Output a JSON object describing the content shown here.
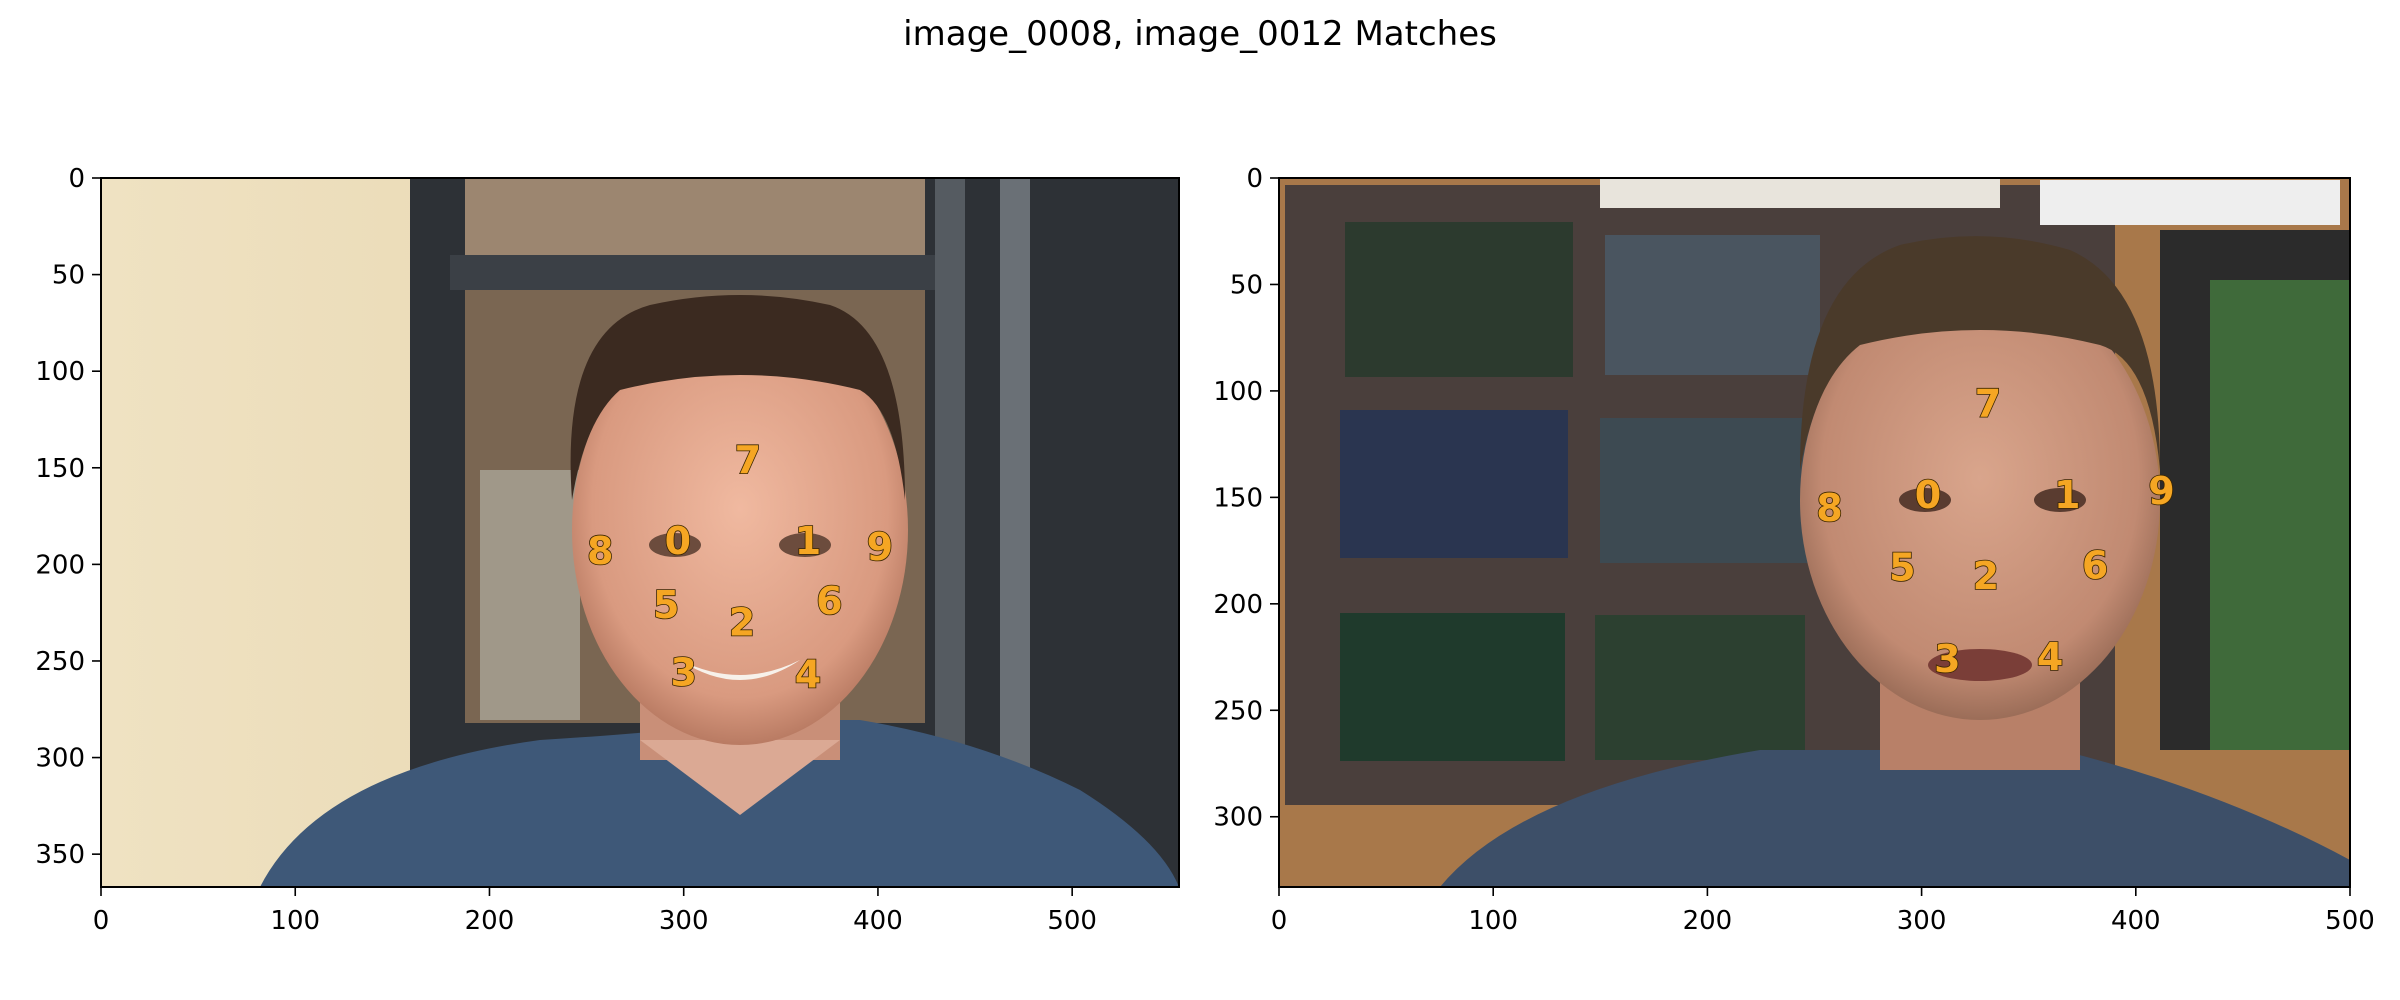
{
  "title": "image_0008, image_0012 Matches",
  "chart_data": [
    {
      "type": "scatter",
      "panel": "left",
      "image_name": "image_0008",
      "title": "",
      "xlabel": "",
      "ylabel": "",
      "xlim": [
        0,
        555
      ],
      "ylim": [
        367,
        0
      ],
      "xticks": [
        0,
        100,
        200,
        300,
        400,
        500
      ],
      "yticks": [
        0,
        50,
        100,
        150,
        200,
        250,
        300,
        350
      ],
      "grid": false,
      "points": [
        {
          "label": "0",
          "x": 297,
          "y": 188
        },
        {
          "label": "1",
          "x": 364,
          "y": 188
        },
        {
          "label": "2",
          "x": 330,
          "y": 230
        },
        {
          "label": "3",
          "x": 300,
          "y": 256
        },
        {
          "label": "4",
          "x": 364,
          "y": 257
        },
        {
          "label": "5",
          "x": 291,
          "y": 221
        },
        {
          "label": "6",
          "x": 375,
          "y": 219
        },
        {
          "label": "7",
          "x": 333,
          "y": 146
        },
        {
          "label": "8",
          "x": 257,
          "y": 193
        },
        {
          "label": "9",
          "x": 401,
          "y": 191
        }
      ]
    },
    {
      "type": "scatter",
      "panel": "right",
      "image_name": "image_0012",
      "title": "",
      "xlabel": "",
      "ylabel": "",
      "xlim": [
        0,
        500
      ],
      "ylim": [
        333,
        0
      ],
      "xticks": [
        0,
        100,
        200,
        300,
        400,
        500
      ],
      "yticks": [
        0,
        50,
        100,
        150,
        200,
        250,
        300
      ],
      "grid": false,
      "points": [
        {
          "label": "0",
          "x": 303,
          "y": 149
        },
        {
          "label": "1",
          "x": 368,
          "y": 149
        },
        {
          "label": "2",
          "x": 330,
          "y": 187
        },
        {
          "label": "3",
          "x": 312,
          "y": 226
        },
        {
          "label": "4",
          "x": 360,
          "y": 225
        },
        {
          "label": "5",
          "x": 291,
          "y": 183
        },
        {
          "label": "6",
          "x": 381,
          "y": 182
        },
        {
          "label": "7",
          "x": 331,
          "y": 106
        },
        {
          "label": "8",
          "x": 257,
          "y": 155
        },
        {
          "label": "9",
          "x": 412,
          "y": 147
        }
      ]
    }
  ]
}
